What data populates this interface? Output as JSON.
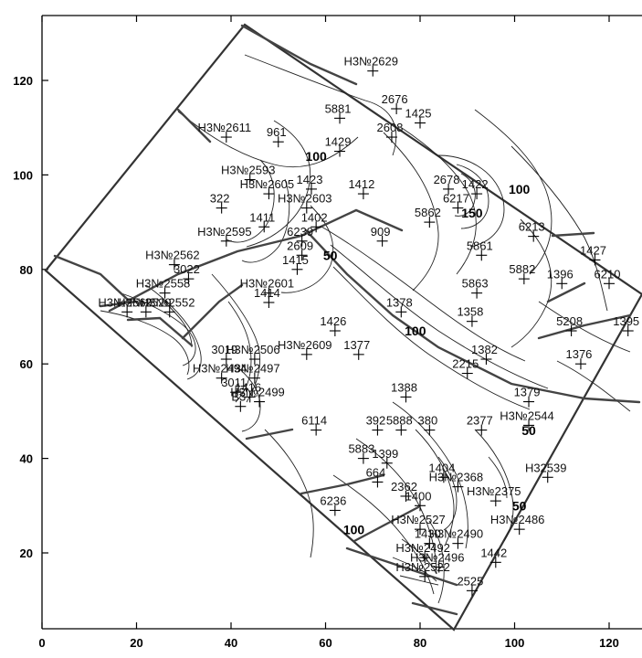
{
  "chart_data": {
    "type": "scatter",
    "title": "",
    "xlabel": "",
    "ylabel": "",
    "xlim": [
      0,
      128
    ],
    "ylim": [
      4,
      133
    ],
    "x_ticks": [
      0,
      20,
      40,
      60,
      80,
      100,
      120
    ],
    "y_ticks": [
      20,
      40,
      60,
      80,
      100,
      120
    ],
    "contour_labels": [
      {
        "text": "100",
        "x": 58,
        "y": 103
      },
      {
        "text": "100",
        "x": 79,
        "y": 66
      },
      {
        "text": "100",
        "x": 66,
        "y": 24
      },
      {
        "text": "150",
        "x": 91,
        "y": 91
      },
      {
        "text": "100",
        "x": 101,
        "y": 96
      },
      {
        "text": "50",
        "x": 61,
        "y": 82
      },
      {
        "text": "50",
        "x": 103,
        "y": 45
      },
      {
        "text": "50",
        "x": 101,
        "y": 29
      }
    ],
    "wells": [
      {
        "name": "Н3№2629",
        "x": 70,
        "y": 122
      },
      {
        "name": "2676",
        "x": 75,
        "y": 114
      },
      {
        "name": "5881",
        "x": 63,
        "y": 112
      },
      {
        "name": "1425",
        "x": 80,
        "y": 111
      },
      {
        "name": "Н3№2611",
        "x": 39,
        "y": 108
      },
      {
        "name": "961",
        "x": 50,
        "y": 107
      },
      {
        "name": "2608",
        "x": 74,
        "y": 108
      },
      {
        "name": "1429",
        "x": 63,
        "y": 105
      },
      {
        "name": "Н3№2593",
        "x": 44,
        "y": 99
      },
      {
        "name": "1423",
        "x": 57,
        "y": 97
      },
      {
        "name": "Н3№2605",
        "x": 48,
        "y": 96
      },
      {
        "name": "1412",
        "x": 68,
        "y": 96
      },
      {
        "name": "2678",
        "x": 86,
        "y": 97
      },
      {
        "name": "1422",
        "x": 92,
        "y": 96
      },
      {
        "name": "322",
        "x": 38,
        "y": 93
      },
      {
        "name": "Н3№2603",
        "x": 56,
        "y": 93
      },
      {
        "name": "6217",
        "x": 88,
        "y": 93
      },
      {
        "name": "1411",
        "x": 47,
        "y": 89
      },
      {
        "name": "1402",
        "x": 58,
        "y": 89
      },
      {
        "name": "5862",
        "x": 82,
        "y": 90
      },
      {
        "name": "909",
        "x": 72,
        "y": 86
      },
      {
        "name": "6213",
        "x": 104,
        "y": 87
      },
      {
        "name": "Н3№2595",
        "x": 39,
        "y": 86
      },
      {
        "name": "6239",
        "x": 55,
        "y": 86
      },
      {
        "name": "2609",
        "x": 55,
        "y": 83
      },
      {
        "name": "1415",
        "x": 54,
        "y": 80
      },
      {
        "name": "5861",
        "x": 93,
        "y": 83
      },
      {
        "name": "1427",
        "x": 117,
        "y": 82
      },
      {
        "name": "Н3№2562",
        "x": 28,
        "y": 81
      },
      {
        "name": "3022",
        "x": 31,
        "y": 78
      },
      {
        "name": "5882",
        "x": 102,
        "y": 78
      },
      {
        "name": "1396",
        "x": 110,
        "y": 77
      },
      {
        "name": "6210",
        "x": 120,
        "y": 77
      },
      {
        "name": "Н3№2558",
        "x": 26,
        "y": 75
      },
      {
        "name": "Н3№2601",
        "x": 48,
        "y": 75
      },
      {
        "name": "1414",
        "x": 48,
        "y": 73
      },
      {
        "name": "5863",
        "x": 92,
        "y": 75
      },
      {
        "name": "Н3№2569",
        "x": 18,
        "y": 71
      },
      {
        "name": "Н3№2529",
        "x": 22,
        "y": 71
      },
      {
        "name": "Н3№2552",
        "x": 27,
        "y": 71
      },
      {
        "name": "1378",
        "x": 76,
        "y": 71
      },
      {
        "name": "1358",
        "x": 91,
        "y": 69
      },
      {
        "name": "5208",
        "x": 112,
        "y": 67
      },
      {
        "name": "1395",
        "x": 124,
        "y": 67
      },
      {
        "name": "1426",
        "x": 62,
        "y": 67
      },
      {
        "name": "1377",
        "x": 67,
        "y": 62
      },
      {
        "name": "Н3№2609",
        "x": 56,
        "y": 62
      },
      {
        "name": "3019",
        "x": 39,
        "y": 61
      },
      {
        "name": "Н3№2506",
        "x": 45,
        "y": 61
      },
      {
        "name": "1382",
        "x": 94,
        "y": 61
      },
      {
        "name": "1376",
        "x": 114,
        "y": 60
      },
      {
        "name": "2215",
        "x": 90,
        "y": 58
      },
      {
        "name": "Н3№2494",
        "x": 38,
        "y": 57
      },
      {
        "name": "Н3№2497",
        "x": 45,
        "y": 57
      },
      {
        "name": "1388",
        "x": 77,
        "y": 53
      },
      {
        "name": "1379",
        "x": 103,
        "y": 52
      },
      {
        "name": "3011",
        "x": 41,
        "y": 54
      },
      {
        "name": "1416",
        "x": 44,
        "y": 53
      },
      {
        "name": "Н3№2499",
        "x": 46,
        "y": 52
      },
      {
        "name": "В3",
        "x": 42,
        "y": 51
      },
      {
        "name": "6114",
        "x": 58,
        "y": 46
      },
      {
        "name": "392",
        "x": 71,
        "y": 46
      },
      {
        "name": "5888",
        "x": 76,
        "y": 46
      },
      {
        "name": "380",
        "x": 82,
        "y": 46
      },
      {
        "name": "2377",
        "x": 93,
        "y": 46
      },
      {
        "name": "Н3№2544",
        "x": 103,
        "y": 47
      },
      {
        "name": "5883",
        "x": 68,
        "y": 40
      },
      {
        "name": "1399",
        "x": 73,
        "y": 39
      },
      {
        "name": "664",
        "x": 71,
        "y": 35
      },
      {
        "name": "1404",
        "x": 85,
        "y": 36
      },
      {
        "name": "Н3№2368",
        "x": 88,
        "y": 34
      },
      {
        "name": "2362",
        "x": 77,
        "y": 32
      },
      {
        "name": "1400",
        "x": 80,
        "y": 30
      },
      {
        "name": "Н3№2375",
        "x": 96,
        "y": 31
      },
      {
        "name": "Н32539",
        "x": 107,
        "y": 36
      },
      {
        "name": "6236",
        "x": 62,
        "y": 29
      },
      {
        "name": "Н3№2527",
        "x": 80,
        "y": 25
      },
      {
        "name": "Н3№2486",
        "x": 101,
        "y": 25
      },
      {
        "name": "1430",
        "x": 82,
        "y": 22
      },
      {
        "name": "Н3№2490",
        "x": 88,
        "y": 22
      },
      {
        "name": "Н3№2492",
        "x": 81,
        "y": 19
      },
      {
        "name": "1442",
        "x": 96,
        "y": 18
      },
      {
        "name": "Н3№2496",
        "x": 84,
        "y": 17
      },
      {
        "name": "Н3№2522",
        "x": 81,
        "y": 15
      },
      {
        "name": "2525",
        "x": 91,
        "y": 12
      }
    ]
  }
}
